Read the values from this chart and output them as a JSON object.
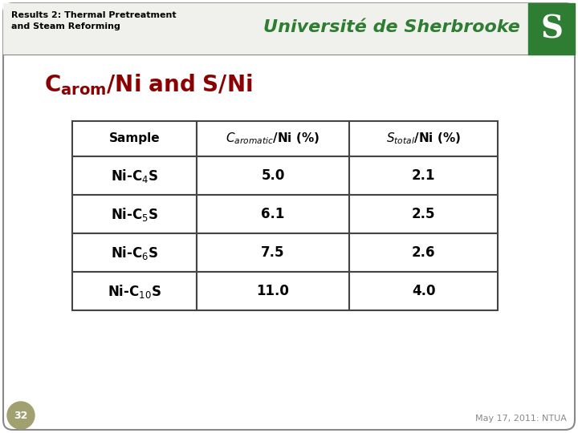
{
  "title_left_line1": "Results 2: Thermal Pretreatment",
  "title_left_line2": "and Steam Reforming",
  "title_right": "Université de Sherbrooke",
  "slide_title": "$\\mathbf{C_{arom}}\\mathbf{/Ni\\ and\\ S/Ni}$",
  "table_col_headers": [
    "Sample",
    "$C_{aromatic}$/Ni (%)",
    "$S_{total}$/Ni (%)"
  ],
  "table_row_labels": [
    "Ni-C$_4$S",
    "Ni-C$_5$S",
    "Ni-C$_6$S",
    "Ni-C$_{10}$S"
  ],
  "table_values": [
    [
      "5.0",
      "2.1"
    ],
    [
      "6.1",
      "2.5"
    ],
    [
      "7.5",
      "2.6"
    ],
    [
      "11.0",
      "4.0"
    ]
  ],
  "bg_color": "#ffffff",
  "outer_border_color": "#888888",
  "header_bg_color": "#f0f0ec",
  "title_left_color": "#000000",
  "title_right_color": "#2e7d32",
  "logo_bg_color": "#2e7d32",
  "logo_text_color": "#ffffff",
  "slide_title_color": "#8b0000",
  "table_border_color": "#444444",
  "table_bg_color": "#ffffff",
  "footer_text": "May 17, 2011: NTUA",
  "footer_color": "#888888",
  "slide_number": "32",
  "slide_number_bg": "#a0a070",
  "slide_number_color": "#ffffff"
}
